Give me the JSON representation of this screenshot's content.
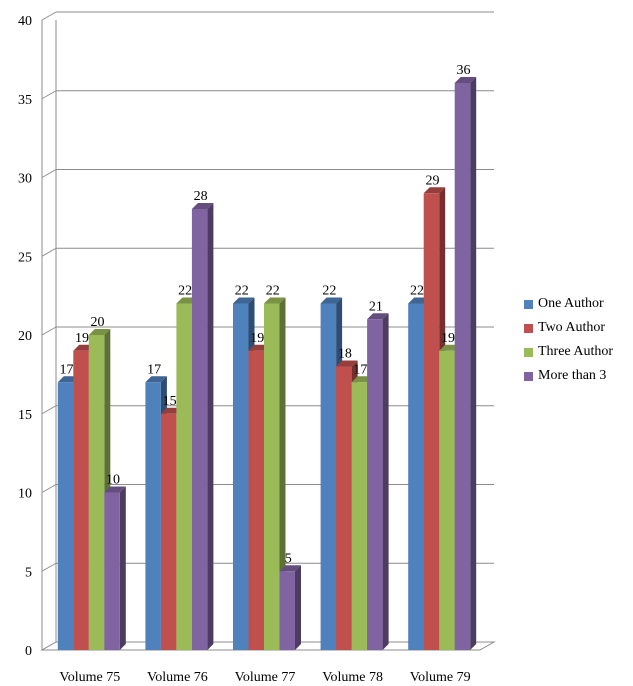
{
  "chart_data": {
    "type": "bar",
    "categories": [
      "Volume 75",
      "Volume 76",
      "Volume 77",
      "Volume 78",
      "Volume 79"
    ],
    "series": [
      {
        "name": "One Author",
        "values": [
          17,
          17,
          22,
          22,
          22
        ],
        "color": "#4F81BD"
      },
      {
        "name": "Two Author",
        "values": [
          19,
          15,
          19,
          18,
          29
        ],
        "color": "#C0504D"
      },
      {
        "name": "Three Author",
        "values": [
          20,
          22,
          22,
          17,
          19
        ],
        "color": "#9BBB59"
      },
      {
        "name": "More than 3",
        "values": [
          10,
          28,
          5,
          21,
          36
        ],
        "color": "#8064A2"
      }
    ],
    "ylim": [
      0,
      40
    ],
    "yticks": [
      "0",
      "5",
      "10",
      "15",
      "20",
      "25",
      "30",
      "35",
      "40"
    ],
    "grid": true,
    "legend_position": "right",
    "style": "3d-clustered-column",
    "title": "",
    "xlabel": "",
    "ylabel": ""
  }
}
